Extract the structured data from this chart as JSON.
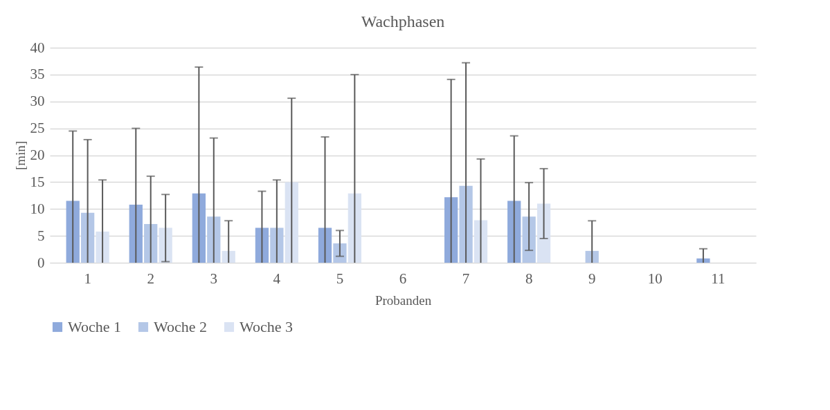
{
  "chart_data": {
    "type": "bar",
    "title": "Wachphasen",
    "xlabel": "Probanden",
    "ylabel": "[min]",
    "categories": [
      "1",
      "2",
      "3",
      "4",
      "5",
      "6",
      "7",
      "8",
      "9",
      "10",
      "11"
    ],
    "series": [
      {
        "name": "Woche 1",
        "color": "#8faadc",
        "values": [
          11.5,
          10.8,
          12.9,
          6.5,
          6.5,
          0,
          12.2,
          11.5,
          0,
          0,
          0.8
        ],
        "errors": [
          [
            0,
            24.5
          ],
          [
            0,
            25.0
          ],
          [
            0,
            36.4
          ],
          [
            0,
            13.3
          ],
          [
            0,
            23.4
          ],
          null,
          [
            0,
            34.1
          ],
          [
            0,
            23.6
          ],
          null,
          null,
          [
            0,
            2.6
          ]
        ]
      },
      {
        "name": "Woche 2",
        "color": "#b4c7e7",
        "values": [
          9.3,
          7.2,
          8.6,
          6.5,
          3.6,
          0,
          14.3,
          8.6,
          2.2,
          0,
          0
        ],
        "errors": [
          [
            0,
            22.9
          ],
          [
            0,
            16.1
          ],
          [
            0,
            23.2
          ],
          [
            0,
            15.4
          ],
          [
            1.2,
            6.0
          ],
          null,
          [
            0,
            37.2
          ],
          [
            2.3,
            14.9
          ],
          [
            0,
            7.8
          ],
          null,
          null
        ]
      },
      {
        "name": "Woche 3",
        "color": "#dae3f3",
        "values": [
          5.8,
          6.5,
          2.2,
          15.0,
          12.9,
          0,
          7.9,
          11.0,
          0,
          0,
          0
        ],
        "errors": [
          [
            0,
            15.4
          ],
          [
            0.2,
            12.7
          ],
          [
            0,
            7.8
          ],
          [
            0,
            30.6
          ],
          [
            0,
            35.0
          ],
          null,
          [
            0,
            19.3
          ],
          [
            4.5,
            17.5
          ],
          null,
          null,
          null
        ]
      }
    ],
    "ylim": [
      0,
      40
    ],
    "yticks": [
      0,
      5,
      10,
      15,
      20,
      25,
      30,
      35,
      40
    ],
    "grid": "y",
    "legend": "bottom"
  }
}
